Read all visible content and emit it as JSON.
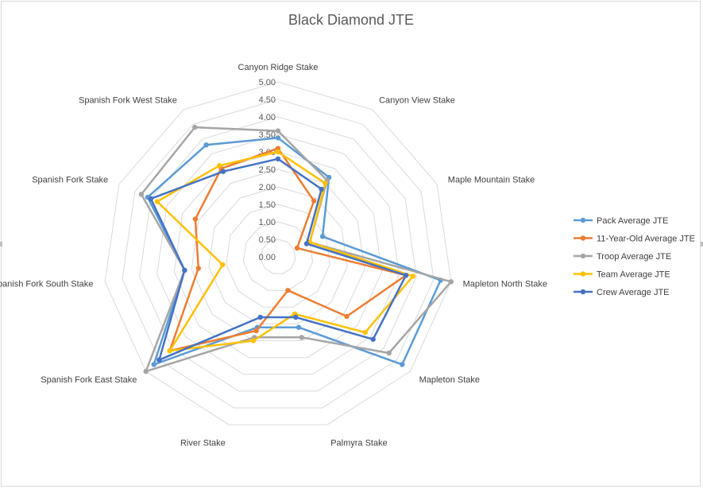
{
  "chart_data": {
    "type": "radar",
    "title": "Black Diamond JTE",
    "categories": [
      "Canyon Ridge Stake",
      "Canyon View Stake",
      "Maple Mountain Stake",
      "Mapleton North Stake",
      "Mapleton Stake",
      "Palmyra Stake",
      "River Stake",
      "Spanish Fork East Stake",
      "Spanish Fork South Stake",
      "Spanish Fork Stake",
      "Spanish Fork West Stake"
    ],
    "rlim": [
      0,
      5
    ],
    "r_ticks": [
      "0.00",
      "0.50",
      "1.00",
      "1.50",
      "2.00",
      "2.50",
      "3.00",
      "3.50",
      "4.00",
      "4.50",
      "5.00"
    ],
    "grid": true,
    "legend_position": "right",
    "series": [
      {
        "name": "Pack Average JTE",
        "color": "#5b9bd5",
        "values": [
          3.4,
          2.7,
          1.4,
          4.7,
          4.7,
          2.1,
          2.1,
          4.7,
          2.7,
          4.1,
          3.8
        ]
      },
      {
        "name": "11-Year-Old Average JTE",
        "color": "#ed7d31",
        "values": [
          3.1,
          1.9,
          0.6,
          3.7,
          2.6,
          1.0,
          2.2,
          4.1,
          2.3,
          2.6,
          3.0
        ]
      },
      {
        "name": "Troop Average JTE",
        "color": "#a5a5a5",
        "values": [
          3.6,
          2.6,
          1.0,
          5.0,
          4.2,
          2.4,
          2.4,
          5.0,
          2.7,
          4.3,
          4.4
        ]
      },
      {
        "name": "Team Average JTE",
        "color": "#ffc000",
        "values": [
          3.0,
          2.5,
          1.0,
          3.9,
          3.3,
          1.7,
          2.5,
          4.1,
          1.6,
          3.8,
          3.1
        ]
      },
      {
        "name": "Crew Average JTE",
        "color": "#4472c4",
        "values": [
          2.8,
          2.3,
          0.9,
          3.7,
          3.6,
          1.8,
          1.8,
          4.5,
          2.7,
          4.0,
          2.9
        ]
      }
    ]
  }
}
